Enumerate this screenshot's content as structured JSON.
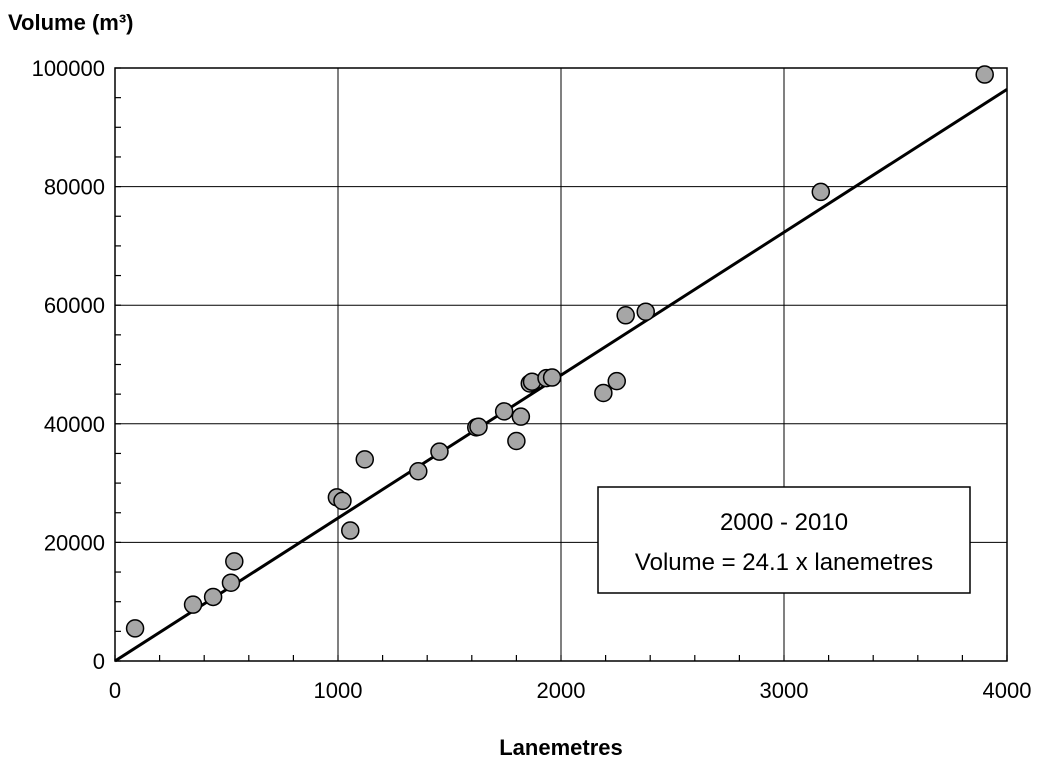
{
  "chart_data": {
    "type": "scatter",
    "title": "",
    "xlabel": "Lanemetres",
    "ylabel": "Volume (m³)",
    "xlim": [
      0,
      4000
    ],
    "ylim": [
      0,
      100000
    ],
    "x_ticks": [
      "0",
      "1000",
      "2000",
      "3000",
      "4000"
    ],
    "y_ticks": [
      "0",
      "20000",
      "40000",
      "60000",
      "80000",
      "100000"
    ],
    "grid": true,
    "series": [
      {
        "points": [
          [
            90,
            5500
          ],
          [
            350,
            9500
          ],
          [
            440,
            10800
          ],
          [
            520,
            13200
          ],
          [
            535,
            16800
          ],
          [
            995,
            27600
          ],
          [
            1020,
            27000
          ],
          [
            1055,
            22000
          ],
          [
            1120,
            34000
          ],
          [
            1360,
            32000
          ],
          [
            1455,
            35300
          ],
          [
            1620,
            39400
          ],
          [
            1630,
            39500
          ],
          [
            1745,
            42100
          ],
          [
            1800,
            37100
          ],
          [
            1820,
            41200
          ],
          [
            1860,
            46800
          ],
          [
            1870,
            47100
          ],
          [
            1935,
            47700
          ],
          [
            1960,
            47800
          ],
          [
            2190,
            45200
          ],
          [
            2250,
            47200
          ],
          [
            2290,
            58300
          ],
          [
            2380,
            58900
          ],
          [
            3165,
            79100
          ],
          [
            3900,
            98900
          ]
        ],
        "marker_color": "#a6a6a6"
      }
    ],
    "fit_line": {
      "slope": 24.1,
      "intercept": 0,
      "x_range": [
        0,
        4000
      ]
    },
    "annotation": {
      "line1": "2000 - 2010",
      "line2": "Volume = 24.1 x lanemetres",
      "placement": "lower-right"
    }
  }
}
